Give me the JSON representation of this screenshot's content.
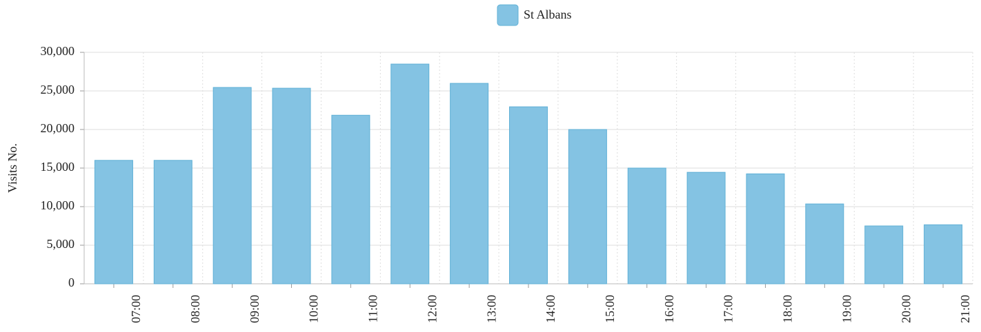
{
  "chart_data": {
    "type": "bar",
    "y_label": "Visits No.",
    "categories": [
      "07:00",
      "08:00",
      "09:00",
      "10:00",
      "11:00",
      "12:00",
      "13:00",
      "14:00",
      "15:00",
      "16:00",
      "17:00",
      "18:00",
      "19:00",
      "20:00",
      "21:00"
    ],
    "series": [
      {
        "name": "St Albans",
        "color": "#84c3e3",
        "values": [
          16000,
          16000,
          25450,
          25350,
          21850,
          28480,
          25980,
          22940,
          20000,
          15000,
          14450,
          14250,
          10350,
          7500,
          7650
        ]
      }
    ],
    "ylim": [
      0,
      30000
    ],
    "yticks": [
      0,
      {
        "value": 5000,
        "label": "5,000"
      },
      {
        "value": 10000,
        "label": "10,000"
      },
      {
        "value": 15000,
        "label": "15,000"
      },
      {
        "value": 20000,
        "label": "20,000"
      },
      {
        "value": 25000,
        "label": "25,000"
      },
      {
        "value": 30000,
        "label": "30,000"
      }
    ],
    "grid": true,
    "legend": "top"
  }
}
